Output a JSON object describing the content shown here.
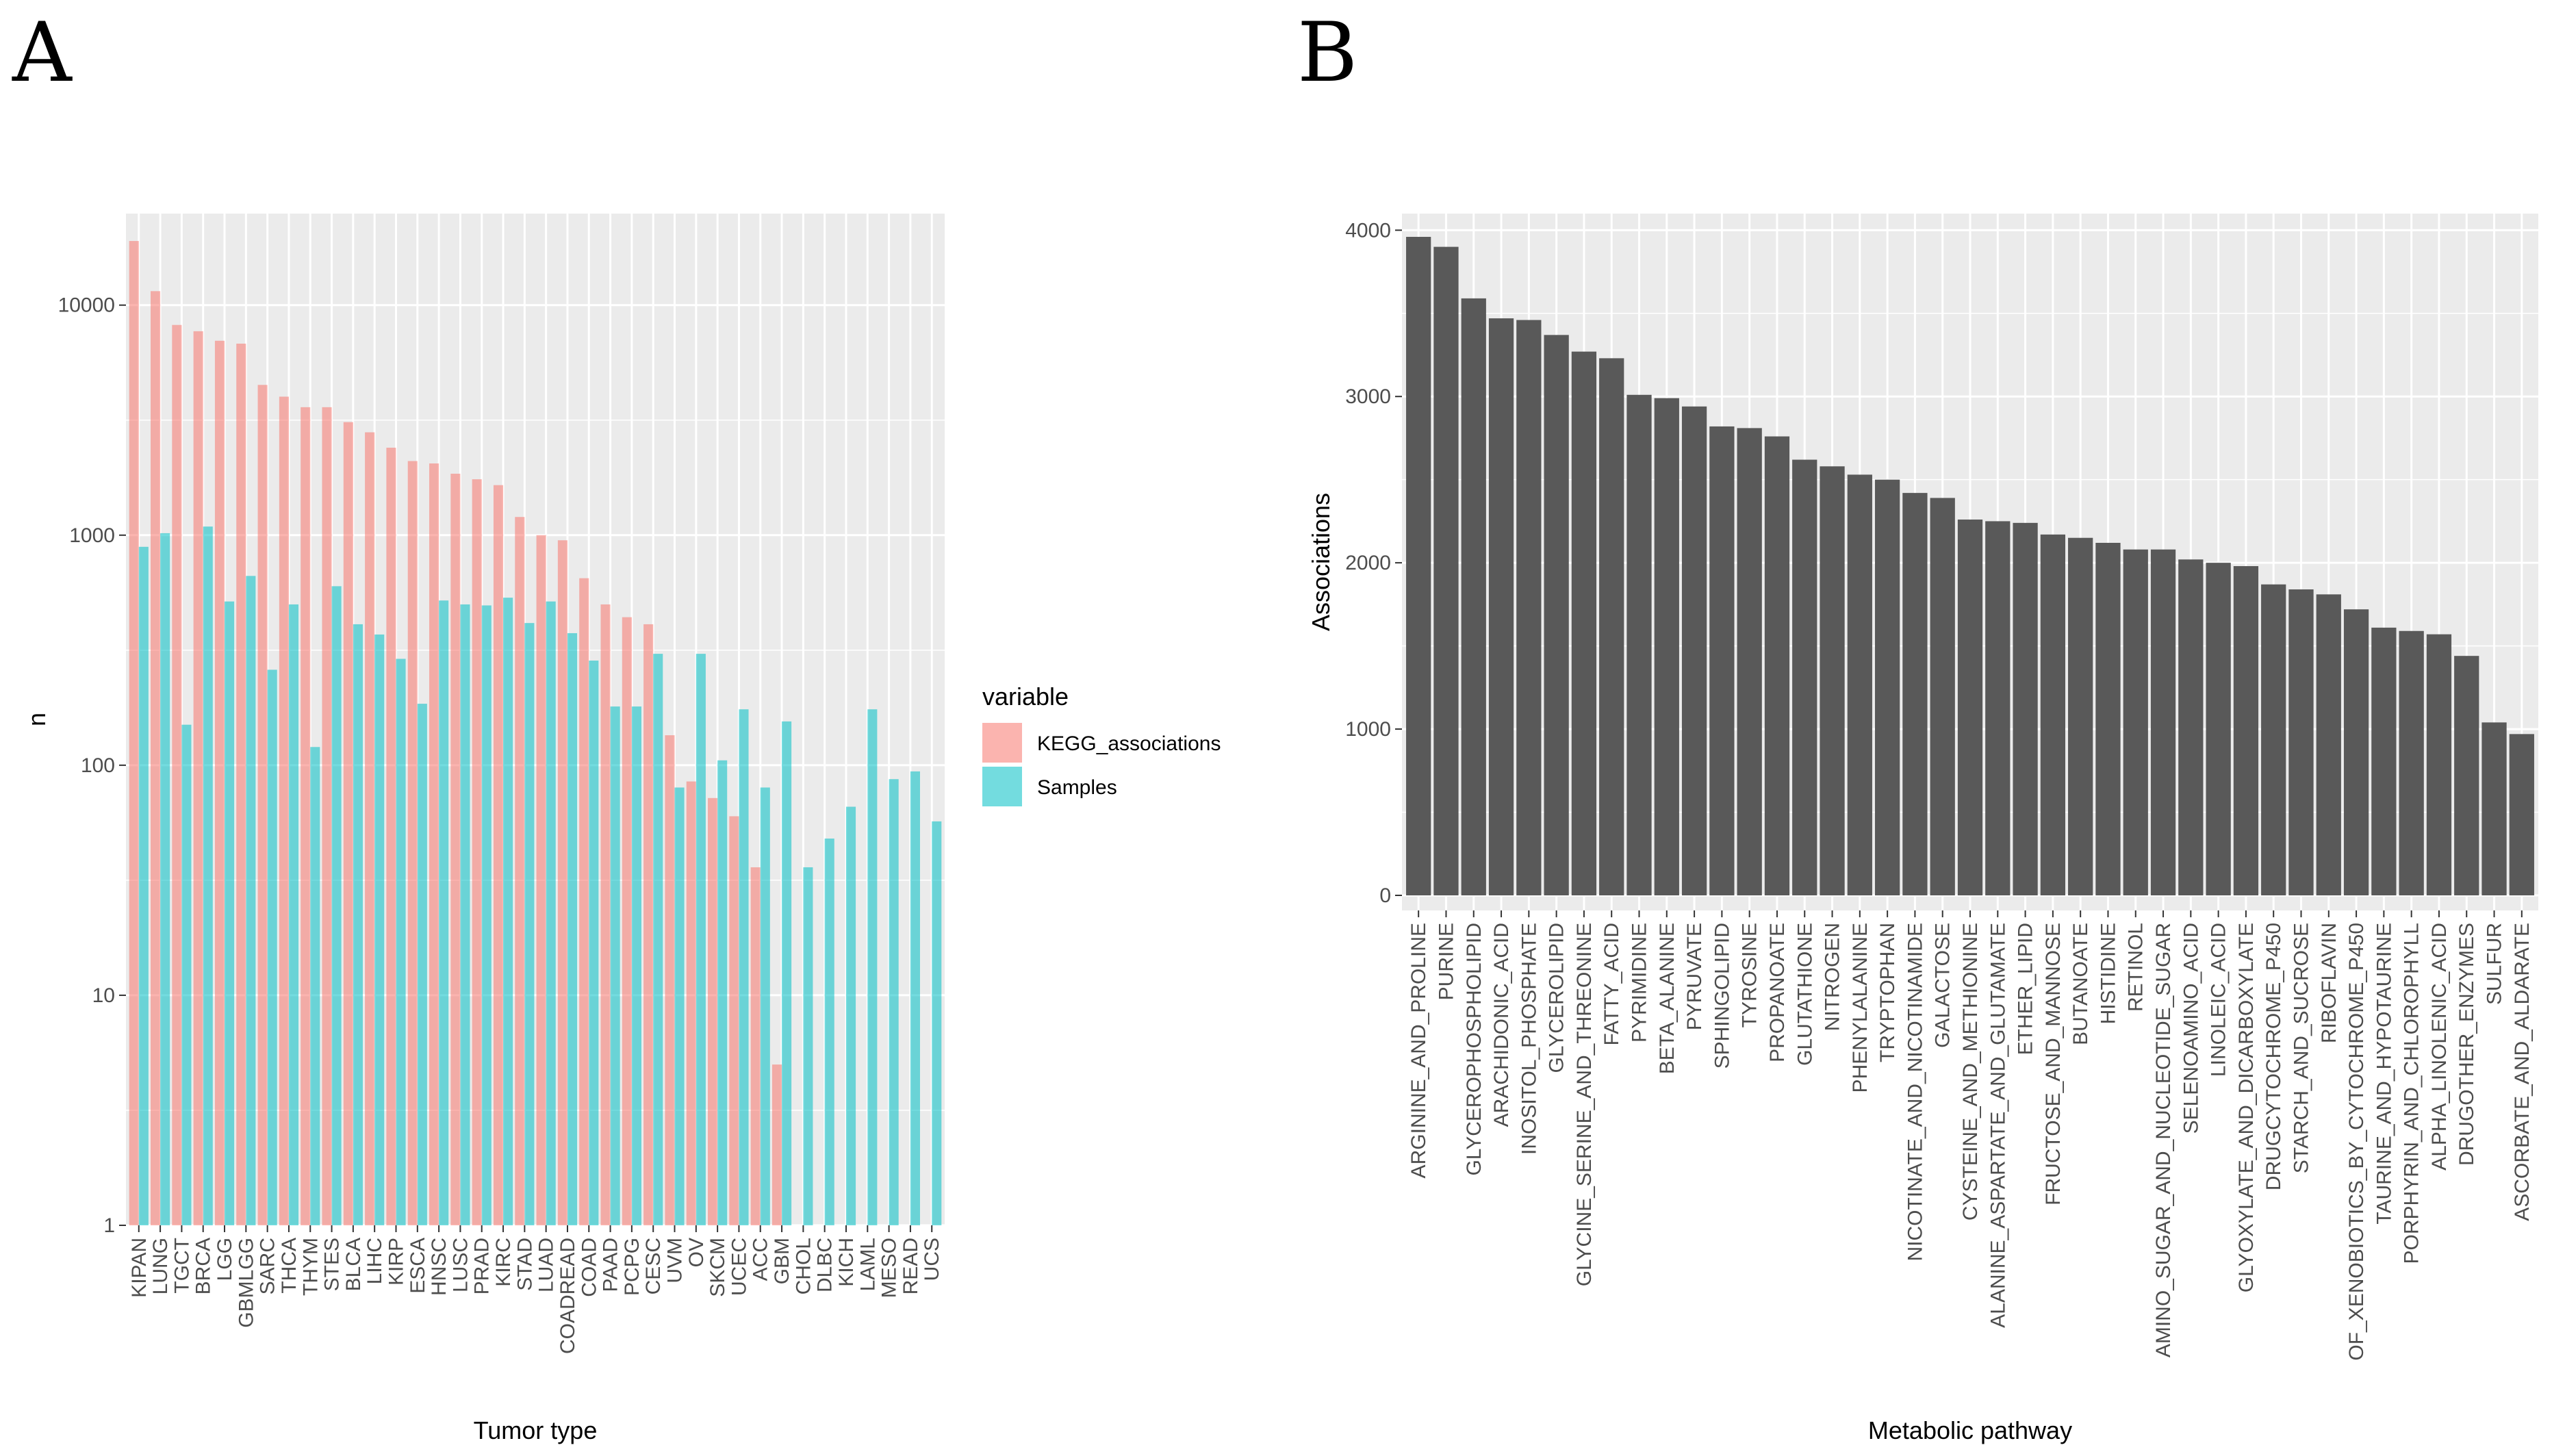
{
  "panels": {
    "a_label": "A",
    "b_label": "B"
  },
  "colors": {
    "panel_bg": "#EBEBEB",
    "grid": "#FFFFFF",
    "kegg": "#F8766D",
    "samples": "#00BFC4",
    "bar_b": "#595959"
  },
  "chart_data": [
    {
      "type": "bar",
      "title": "",
      "xlabel": "Tumor type",
      "ylabel": "n",
      "yscale": "log10",
      "ylim": [
        1,
        25000
      ],
      "yticks": [
        1,
        10,
        100,
        1000,
        10000
      ],
      "ytick_labels": [
        "1",
        "10",
        "100",
        "1000",
        "10000"
      ],
      "legend": {
        "title": "variable",
        "position": "right"
      },
      "categories": [
        "KIPAN",
        "LUNG",
        "TGCT",
        "BRCA",
        "LGG",
        "GBMLGG",
        "SARC",
        "THCA",
        "THYM",
        "STES",
        "BLCA",
        "LIHC",
        "KIRP",
        "ESCA",
        "HNSC",
        "LUSC",
        "PRAD",
        "KIRC",
        "STAD",
        "LUAD",
        "COADREAD",
        "COAD",
        "PAAD",
        "PCPG",
        "CESC",
        "UVM",
        "OV",
        "SKCM",
        "UCEC",
        "ACC",
        "GBM",
        "CHOL",
        "DLBC",
        "KICH",
        "LAML",
        "MESO",
        "READ",
        "UCS"
      ],
      "series": [
        {
          "name": "KEGG_associations",
          "values": [
            19000,
            11500,
            8200,
            7700,
            7000,
            6800,
            4500,
            4000,
            3600,
            3600,
            3100,
            2800,
            2400,
            2100,
            2050,
            1850,
            1750,
            1650,
            1200,
            1000,
            950,
            650,
            500,
            440,
            410,
            135,
            85,
            72,
            60,
            36,
            5,
            null,
            null,
            null,
            null,
            null,
            null,
            null
          ]
        },
        {
          "name": "Samples",
          "values": [
            890,
            1020,
            150,
            1090,
            515,
            665,
            260,
            500,
            120,
            600,
            410,
            370,
            290,
            185,
            520,
            500,
            495,
            535,
            415,
            515,
            375,
            285,
            180,
            180,
            305,
            80,
            305,
            105,
            175,
            80,
            155,
            36,
            48,
            66,
            175,
            87,
            94,
            57
          ]
        }
      ]
    },
    {
      "type": "bar",
      "title": "",
      "xlabel": "Metabolic pathway",
      "ylabel": "Associations",
      "ylim": [
        0,
        4100
      ],
      "yticks": [
        0,
        1000,
        2000,
        3000,
        4000
      ],
      "ytick_labels": [
        "0",
        "1000",
        "2000",
        "3000",
        "4000"
      ],
      "categories": [
        "ARGININE_AND_PROLINE",
        "PURINE",
        "GLYCEROPHOSPHOLIPID",
        "ARACHIDONIC_ACID",
        "INOSITOL_PHOSPHATE",
        "GLYCEROLIPID",
        "GLYCINE_SERINE_AND_THREONINE",
        "FATTY_ACID",
        "PYRIMIDINE",
        "BETA_ALANINE",
        "PYRUVATE",
        "SPHINGOLIPID",
        "TYROSINE",
        "PROPANOATE",
        "GLUTATHIONE",
        "NITROGEN",
        "PHENYLALANINE",
        "TRYPTOPHAN",
        "NICOTINATE_AND_NICOTINAMIDE",
        "GALACTOSE",
        "CYSTEINE_AND_METHIONINE",
        "ALANINE_ASPARTATE_AND_GLUTAMATE",
        "ETHER_LIPID",
        "FRUCTOSE_AND_MANNOSE",
        "BUTANOATE",
        "HISTIDINE",
        "RETINOL",
        "AMINO_SUGAR_AND_NUCLEOTIDE_SUGAR",
        "SELENOAMINO_ACID",
        "LINOLEIC_ACID",
        "GLYOXYLATE_AND_DICARBOXYLATE",
        "DRUGCYTOCHROME_P450",
        "STARCH_AND_SUCROSE",
        "RIBOFLAVIN",
        "OF_XENOBIOTICS_BY_CYTOCHROME_P450",
        "TAURINE_AND_HYPOTAURINE",
        "PORPHYRIN_AND_CHLOROPHYLL",
        "ALPHA_LINOLENIC_ACID",
        "DRUGOTHER_ENZYMES",
        "SULFUR",
        "ASCORBATE_AND_ALDARATE"
      ],
      "values": [
        3960,
        3900,
        3590,
        3470,
        3460,
        3370,
        3270,
        3230,
        3010,
        2990,
        2940,
        2820,
        2810,
        2760,
        2620,
        2580,
        2530,
        2500,
        2420,
        2390,
        2260,
        2250,
        2240,
        2170,
        2150,
        2120,
        2080,
        2080,
        2020,
        2000,
        1980,
        1870,
        1840,
        1810,
        1720,
        1610,
        1590,
        1570,
        1440,
        1040,
        970
      ]
    }
  ]
}
